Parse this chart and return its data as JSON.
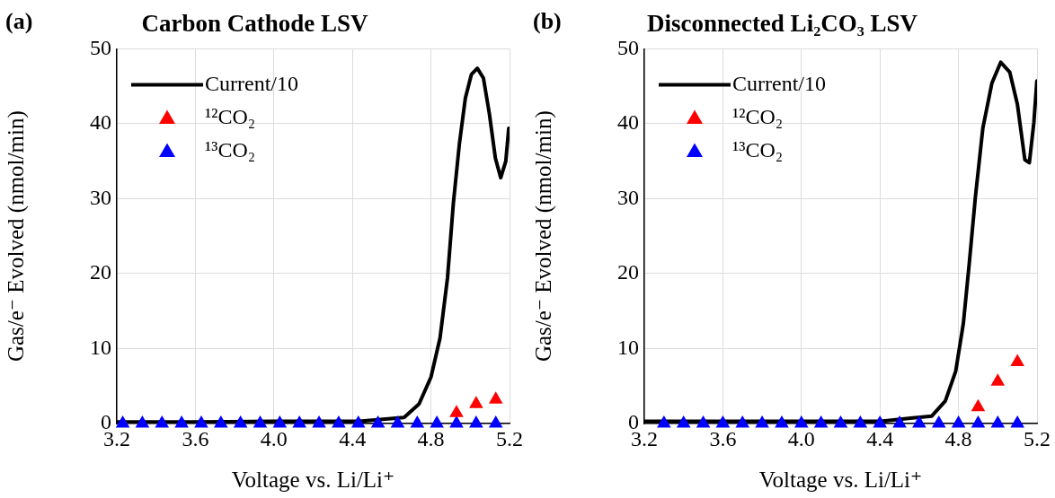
{
  "chart_data": [
    {
      "type": "scatter",
      "title": "Carbon Cathode LSV",
      "xlabel": "Voltage vs. Li/Li⁺",
      "ylabel": "Gas/e⁻ Evolved (nmol/min)",
      "annotations": [
        "(a)"
      ],
      "xlim": [
        3.2,
        5.2
      ],
      "xticks": [
        3.2,
        3.6,
        {
          "value": 4,
          "label": "4.0"
        },
        4.4,
        4.8,
        5.2
      ],
      "ylim": [
        0,
        50
      ],
      "yticks": [
        0,
        10,
        20,
        30,
        40,
        50
      ],
      "grid": true,
      "legend": "top left",
      "series": [
        {
          "name": "Current/10",
          "type": "line",
          "color": "#000000",
          "marker": "none",
          "line_style": "solid",
          "x": [
            3.2,
            3.6,
            4.0,
            4.434,
            4.663,
            4.739,
            4.8,
            4.846,
            4.884,
            4.914,
            4.945,
            4.975,
            5.006,
            5.036,
            5.067,
            5.097,
            5.128,
            5.155,
            5.181,
            5.196
          ],
          "values": [
            0.2,
            0.2,
            0.3,
            0.3,
            0.8,
            2.6,
            6.2,
            11.4,
            19.4,
            29.4,
            37.4,
            43.4,
            46.6,
            47.4,
            46.1,
            41.4,
            35.4,
            32.8,
            35,
            39.4
          ]
        },
        {
          "name": "¹²CO₂",
          "type": "scatter",
          "color": "#ff0000",
          "marker": "triangle",
          "x": [
            4.93,
            5.03,
            5.13
          ],
          "values": [
            1.4,
            2.6,
            3.2
          ]
        },
        {
          "name": "¹³CO₂",
          "type": "scatter",
          "color": "#0000ff",
          "marker": "triangle",
          "x": [
            3.23,
            3.33,
            3.43,
            3.53,
            3.63,
            3.73,
            3.83,
            3.93,
            4.03,
            4.13,
            4.23,
            4.33,
            4.43,
            4.53,
            4.63,
            4.73,
            4.83,
            4.93,
            5.03,
            5.13
          ],
          "values": [
            0,
            0,
            0,
            0,
            0,
            0,
            0,
            0,
            0,
            0,
            0,
            0,
            0,
            0,
            0,
            0,
            0,
            0,
            0,
            0
          ]
        }
      ]
    },
    {
      "type": "scatter",
      "title": "Disconnected Li₂CO₃ LSV",
      "xlabel": "Voltage vs. Li/Li⁺",
      "ylabel": "Gas/e⁻ Evolved (nmol/min)",
      "annotations": [
        "(b)"
      ],
      "xlim": [
        3.2,
        5.2
      ],
      "xticks": [
        3.2,
        3.6,
        {
          "value": 4,
          "label": "4.0"
        },
        4.4,
        4.8,
        5.2
      ],
      "ylim": [
        0,
        50
      ],
      "yticks": [
        0,
        10,
        20,
        30,
        40,
        50
      ],
      "grid": true,
      "legend": "top left",
      "series": [
        {
          "name": "Current/10",
          "type": "line",
          "color": "#000000",
          "marker": "none",
          "line_style": "solid",
          "x": [
            3.2,
            3.6,
            4.0,
            4.405,
            4.664,
            4.733,
            4.786,
            4.825,
            4.855,
            4.886,
            4.924,
            4.97,
            5.015,
            5.061,
            5.1,
            5.138,
            5.161,
            5.184,
            5.199
          ],
          "values": [
            0.3,
            0.3,
            0.3,
            0.3,
            1.0,
            3.0,
            7.0,
            13.4,
            21.4,
            30.2,
            39.4,
            45.4,
            48.2,
            46.9,
            42.6,
            35.2,
            34.8,
            40.2,
            45.7
          ]
        },
        {
          "name": "¹²CO₂",
          "type": "scatter",
          "color": "#ff0000",
          "marker": "triangle",
          "x": [
            4.9,
            5.0,
            5.1
          ],
          "values": [
            2.2,
            5.6,
            8.2
          ]
        },
        {
          "name": "¹³CO₂",
          "type": "scatter",
          "color": "#0000ff",
          "marker": "triangle",
          "x": [
            3.3,
            3.4,
            3.5,
            3.6,
            3.7,
            3.8,
            3.9,
            4.0,
            4.1,
            4.2,
            4.3,
            4.4,
            4.5,
            4.6,
            4.7,
            4.8,
            4.9,
            5.0,
            5.1
          ],
          "values": [
            0,
            0,
            0,
            0,
            0,
            0,
            0,
            0,
            0,
            0,
            0,
            0,
            0,
            0,
            0,
            0,
            0,
            0,
            0
          ]
        }
      ]
    }
  ]
}
